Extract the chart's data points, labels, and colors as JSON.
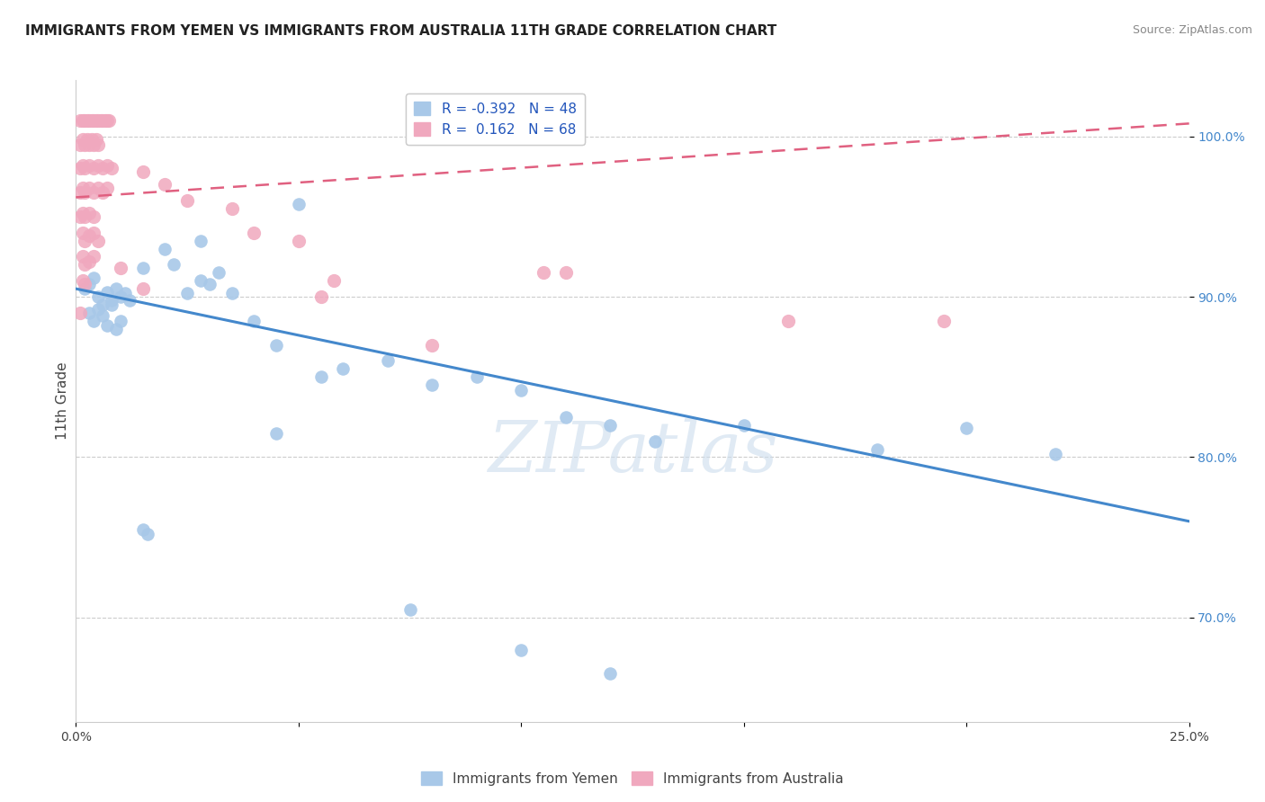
{
  "title": "IMMIGRANTS FROM YEMEN VS IMMIGRANTS FROM AUSTRALIA 11TH GRADE CORRELATION CHART",
  "source": "Source: ZipAtlas.com",
  "ylabel": "11th Grade",
  "legend_item1": "Immigrants from Yemen",
  "legend_item2": "Immigrants from Australia",
  "watermark": "ZIPatlas",
  "blue_color": "#a8c8e8",
  "pink_color": "#f0a8be",
  "blue_line_color": "#4488cc",
  "pink_line_color": "#e06080",
  "blue_scatter": [
    [
      0.2,
      90.5
    ],
    [
      0.3,
      90.8
    ],
    [
      0.4,
      91.2
    ],
    [
      0.5,
      90.0
    ],
    [
      0.6,
      89.5
    ],
    [
      0.7,
      90.3
    ],
    [
      0.8,
      89.8
    ],
    [
      0.9,
      90.5
    ],
    [
      1.0,
      90.0
    ],
    [
      1.1,
      90.2
    ],
    [
      0.3,
      89.0
    ],
    [
      0.4,
      88.5
    ],
    [
      0.5,
      89.2
    ],
    [
      0.6,
      88.8
    ],
    [
      0.7,
      88.2
    ],
    [
      0.8,
      89.5
    ],
    [
      0.9,
      88.0
    ],
    [
      1.0,
      88.5
    ],
    [
      1.2,
      89.8
    ],
    [
      1.5,
      91.8
    ],
    [
      2.0,
      93.0
    ],
    [
      2.5,
      90.2
    ],
    [
      2.8,
      91.0
    ],
    [
      3.0,
      90.8
    ],
    [
      3.2,
      91.5
    ],
    [
      3.5,
      90.2
    ],
    [
      4.0,
      88.5
    ],
    [
      4.5,
      87.0
    ],
    [
      2.2,
      92.0
    ],
    [
      2.8,
      93.5
    ],
    [
      5.0,
      95.8
    ],
    [
      5.5,
      85.0
    ],
    [
      6.0,
      85.5
    ],
    [
      7.0,
      86.0
    ],
    [
      8.0,
      84.5
    ],
    [
      9.0,
      85.0
    ],
    [
      10.0,
      84.2
    ],
    [
      11.0,
      82.5
    ],
    [
      12.0,
      82.0
    ],
    [
      13.0,
      81.0
    ],
    [
      15.0,
      82.0
    ],
    [
      18.0,
      80.5
    ],
    [
      20.0,
      81.8
    ],
    [
      22.0,
      80.2
    ],
    [
      1.5,
      75.5
    ],
    [
      1.6,
      75.2
    ],
    [
      4.5,
      81.5
    ],
    [
      7.5,
      70.5
    ],
    [
      10.0,
      68.0
    ],
    [
      12.0,
      66.5
    ]
  ],
  "pink_scatter": [
    [
      0.1,
      101.0
    ],
    [
      0.15,
      101.0
    ],
    [
      0.2,
      101.0
    ],
    [
      0.25,
      101.0
    ],
    [
      0.3,
      101.0
    ],
    [
      0.35,
      101.0
    ],
    [
      0.4,
      101.0
    ],
    [
      0.45,
      101.0
    ],
    [
      0.5,
      101.0
    ],
    [
      0.55,
      101.0
    ],
    [
      0.6,
      101.0
    ],
    [
      0.65,
      101.0
    ],
    [
      0.7,
      101.0
    ],
    [
      0.75,
      101.0
    ],
    [
      0.1,
      99.5
    ],
    [
      0.15,
      99.8
    ],
    [
      0.2,
      99.5
    ],
    [
      0.25,
      99.8
    ],
    [
      0.3,
      99.5
    ],
    [
      0.35,
      99.8
    ],
    [
      0.4,
      99.5
    ],
    [
      0.45,
      99.8
    ],
    [
      0.5,
      99.5
    ],
    [
      0.1,
      98.0
    ],
    [
      0.15,
      98.2
    ],
    [
      0.2,
      98.0
    ],
    [
      0.3,
      98.2
    ],
    [
      0.4,
      98.0
    ],
    [
      0.5,
      98.2
    ],
    [
      0.6,
      98.0
    ],
    [
      0.7,
      98.2
    ],
    [
      0.8,
      98.0
    ],
    [
      0.1,
      96.5
    ],
    [
      0.15,
      96.8
    ],
    [
      0.2,
      96.5
    ],
    [
      0.3,
      96.8
    ],
    [
      0.4,
      96.5
    ],
    [
      0.5,
      96.8
    ],
    [
      0.6,
      96.5
    ],
    [
      0.7,
      96.8
    ],
    [
      0.1,
      95.0
    ],
    [
      0.15,
      95.2
    ],
    [
      0.2,
      95.0
    ],
    [
      0.3,
      95.2
    ],
    [
      0.4,
      95.0
    ],
    [
      0.15,
      94.0
    ],
    [
      0.2,
      93.5
    ],
    [
      0.3,
      93.8
    ],
    [
      0.4,
      94.0
    ],
    [
      0.5,
      93.5
    ],
    [
      0.15,
      92.5
    ],
    [
      0.2,
      92.0
    ],
    [
      0.3,
      92.2
    ],
    [
      0.4,
      92.5
    ],
    [
      0.15,
      91.0
    ],
    [
      0.2,
      90.8
    ],
    [
      0.1,
      89.0
    ],
    [
      1.5,
      97.8
    ],
    [
      2.0,
      97.0
    ],
    [
      2.5,
      96.0
    ],
    [
      3.5,
      95.5
    ],
    [
      4.0,
      94.0
    ],
    [
      5.0,
      93.5
    ],
    [
      1.0,
      91.8
    ],
    [
      1.5,
      90.5
    ],
    [
      5.5,
      90.0
    ],
    [
      5.8,
      91.0
    ],
    [
      10.5,
      91.5
    ],
    [
      11.0,
      91.5
    ],
    [
      16.0,
      88.5
    ],
    [
      19.5,
      88.5
    ],
    [
      8.0,
      87.0
    ]
  ],
  "blue_trend_x": [
    0.0,
    25.0
  ],
  "blue_trend_y": [
    90.5,
    76.0
  ],
  "pink_trend_x": [
    0.0,
    25.0
  ],
  "pink_trend_y": [
    96.2,
    100.8
  ],
  "xlim": [
    0.0,
    25.0
  ],
  "ylim": [
    63.5,
    103.5
  ],
  "yticks": [
    100.0,
    90.0,
    80.0,
    70.0
  ],
  "grid_color": "#cccccc",
  "background_color": "#ffffff"
}
